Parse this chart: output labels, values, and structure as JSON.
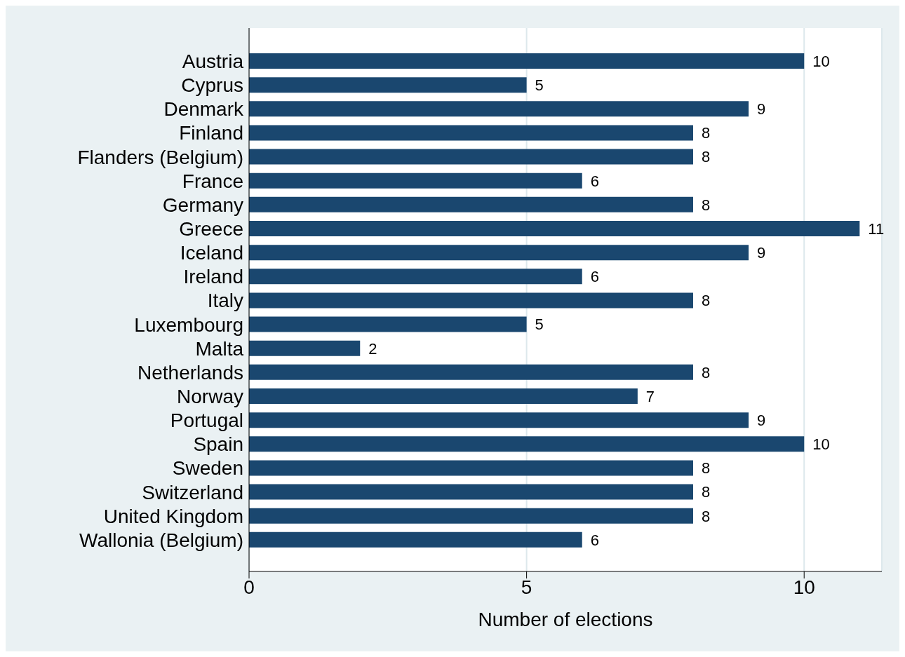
{
  "chart_data": {
    "type": "bar",
    "orientation": "horizontal",
    "xlabel": "Number of elections",
    "categories": [
      "Austria",
      "Cyprus",
      "Denmark",
      "Finland",
      "Flanders (Belgium)",
      "France",
      "Germany",
      "Greece",
      "Iceland",
      "Ireland",
      "Italy",
      "Luxembourg",
      "Malta",
      "Netherlands",
      "Norway",
      "Portugal",
      "Spain",
      "Sweden",
      "Switzerland",
      "United Kingdom",
      "Wallonia (Belgium)"
    ],
    "values": [
      10,
      5,
      9,
      8,
      8,
      6,
      8,
      11,
      9,
      6,
      8,
      5,
      2,
      8,
      7,
      9,
      10,
      8,
      8,
      8,
      6
    ],
    "color": "#1a476f",
    "xlim": [
      0,
      11.4
    ],
    "xticks": [
      0,
      5,
      10
    ],
    "grid": "x",
    "data_labels": true
  }
}
